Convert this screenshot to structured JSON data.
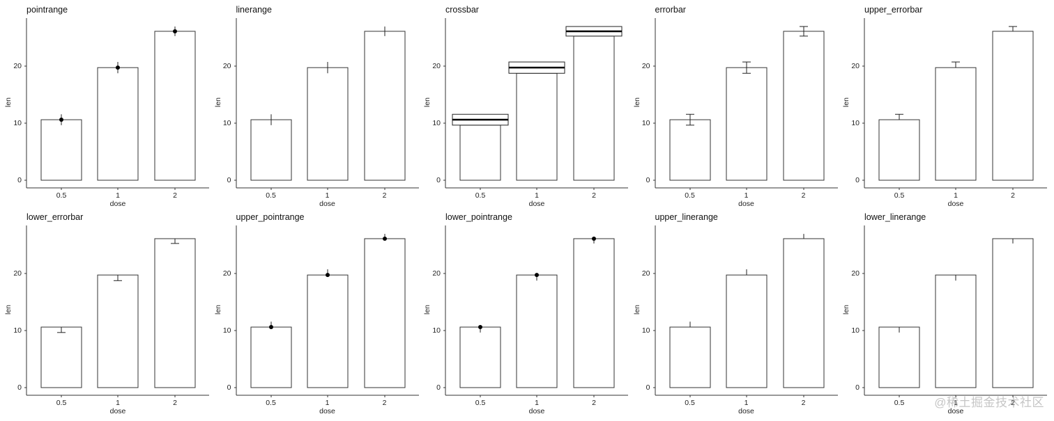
{
  "chart_data": {
    "type": "bar",
    "layout": "2 rows x 5 columns of facet-like panels",
    "categories": [
      "0.5",
      "1",
      "2"
    ],
    "means": [
      10.605,
      19.735,
      26.1
    ],
    "error_half": [
      0.95,
      0.99,
      0.84
    ],
    "xlabel": "dose",
    "ylabel": "len",
    "yticks": [
      0,
      10,
      20
    ],
    "ylim": [
      -1.3,
      27.5
    ],
    "grid": false,
    "bar_fill": "#ffffff",
    "bar_stroke": "#333333",
    "panels": [
      {
        "title": "pointrange",
        "type": "pointrange"
      },
      {
        "title": "linerange",
        "type": "linerange"
      },
      {
        "title": "crossbar",
        "type": "crossbar"
      },
      {
        "title": "errorbar",
        "type": "errorbar"
      },
      {
        "title": "upper_errorbar",
        "type": "upper_errorbar"
      },
      {
        "title": "lower_errorbar",
        "type": "lower_errorbar"
      },
      {
        "title": "upper_pointrange",
        "type": "upper_pointrange"
      },
      {
        "title": "lower_pointrange",
        "type": "lower_pointrange"
      },
      {
        "title": "upper_linerange",
        "type": "upper_linerange"
      },
      {
        "title": "lower_linerange",
        "type": "lower_linerange"
      }
    ]
  },
  "watermark": "@稀土掘金技术社区"
}
